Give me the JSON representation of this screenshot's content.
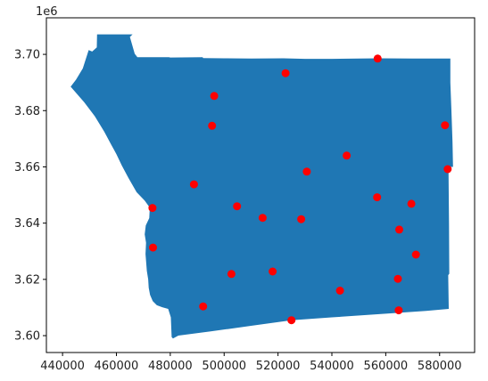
{
  "chart_data": {
    "type": "scatter",
    "title": "",
    "xlabel": "",
    "ylabel": "",
    "xlim": [
      434000,
      593000
    ],
    "ylim": [
      3594000,
      3713000
    ],
    "y_offset_label": "1e6",
    "x_ticks": [
      440000,
      460000,
      480000,
      500000,
      520000,
      540000,
      560000,
      580000
    ],
    "x_tick_labels": [
      "440000",
      "460000",
      "480000",
      "500000",
      "520000",
      "540000",
      "560000",
      "580000"
    ],
    "y_ticks": [
      3600000,
      3620000,
      3640000,
      3660000,
      3680000,
      3700000
    ],
    "y_tick_labels": [
      "3.60",
      "3.62",
      "3.64",
      "3.66",
      "3.68",
      "3.70"
    ],
    "grid": false,
    "polygon_color": "#1f77b4",
    "point_color": "#ff0000",
    "polygon": [
      [
        452800,
        3707100
      ],
      [
        466000,
        3707100
      ],
      [
        465000,
        3706200
      ],
      [
        466800,
        3700200
      ],
      [
        467800,
        3699000
      ],
      [
        479500,
        3699000
      ],
      [
        480000,
        3698900
      ],
      [
        492000,
        3699000
      ],
      [
        492200,
        3698700
      ],
      [
        500000,
        3698600
      ],
      [
        510000,
        3698500
      ],
      [
        522000,
        3698600
      ],
      [
        530000,
        3698400
      ],
      [
        540000,
        3698400
      ],
      [
        550000,
        3698500
      ],
      [
        557500,
        3698600
      ],
      [
        570000,
        3698500
      ],
      [
        584000,
        3698500
      ],
      [
        584000,
        3690000
      ],
      [
        584400,
        3680000
      ],
      [
        584800,
        3669000
      ],
      [
        585000,
        3660000
      ],
      [
        583300,
        3660000
      ],
      [
        583500,
        3640000
      ],
      [
        583600,
        3622000
      ],
      [
        583200,
        3621500
      ],
      [
        583400,
        3609500
      ],
      [
        575000,
        3608800
      ],
      [
        560000,
        3607800
      ],
      [
        540000,
        3606500
      ],
      [
        525000,
        3605500
      ],
      [
        510000,
        3603500
      ],
      [
        495000,
        3601500
      ],
      [
        483000,
        3600000
      ],
      [
        481000,
        3599000
      ],
      [
        480500,
        3599500
      ],
      [
        480200,
        3606500
      ],
      [
        479200,
        3609500
      ],
      [
        477000,
        3610100
      ],
      [
        475000,
        3610800
      ],
      [
        473500,
        3612300
      ],
      [
        472500,
        3614500
      ],
      [
        472000,
        3617000
      ],
      [
        471800,
        3620000
      ],
      [
        471300,
        3623000
      ],
      [
        470800,
        3629000
      ],
      [
        471000,
        3633000
      ],
      [
        470500,
        3636000
      ],
      [
        470900,
        3639200
      ],
      [
        472200,
        3641800
      ],
      [
        472400,
        3645500
      ],
      [
        470500,
        3648000
      ],
      [
        467500,
        3651000
      ],
      [
        464500,
        3656000
      ],
      [
        462000,
        3660500
      ],
      [
        460000,
        3664500
      ],
      [
        458000,
        3668000
      ],
      [
        455500,
        3672500
      ],
      [
        452000,
        3678000
      ],
      [
        448000,
        3683000
      ],
      [
        443000,
        3688500
      ],
      [
        445000,
        3691000
      ],
      [
        447500,
        3695000
      ],
      [
        449700,
        3701500
      ],
      [
        451000,
        3701000
      ],
      [
        452700,
        3702500
      ]
    ],
    "points": [
      [
        557000,
        3698500
      ],
      [
        522800,
        3693300
      ],
      [
        496300,
        3685200
      ],
      [
        495500,
        3674600
      ],
      [
        582000,
        3674800
      ],
      [
        545500,
        3664000
      ],
      [
        583000,
        3659200
      ],
      [
        530700,
        3658300
      ],
      [
        488800,
        3653800
      ],
      [
        556800,
        3649200
      ],
      [
        569500,
        3646900
      ],
      [
        504800,
        3646000
      ],
      [
        473400,
        3645400
      ],
      [
        514300,
        3641900
      ],
      [
        528600,
        3641400
      ],
      [
        565000,
        3637700
      ],
      [
        473600,
        3631300
      ],
      [
        571200,
        3628800
      ],
      [
        518000,
        3622800
      ],
      [
        502700,
        3621900
      ],
      [
        564500,
        3620200
      ],
      [
        543000,
        3616000
      ],
      [
        492200,
        3610400
      ],
      [
        564800,
        3609000
      ],
      [
        525000,
        3605500
      ]
    ]
  }
}
